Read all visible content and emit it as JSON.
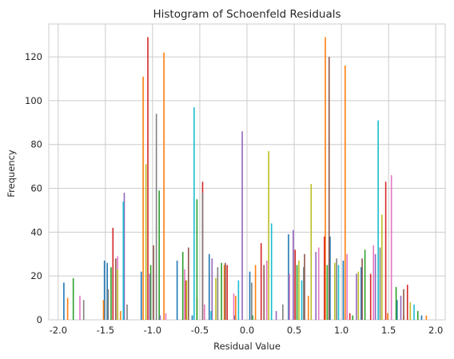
{
  "chart_data": {
    "type": "bar",
    "title": "Histogram of Schoenfeld Residuals",
    "xlabel": "Residual Value",
    "ylabel": "Frequency",
    "xlim": [
      -2.1,
      2.1
    ],
    "ylim": [
      0,
      135
    ],
    "xticks": [
      "-2.0",
      "-1.5",
      "-1.0",
      "-0.5",
      "0.0",
      "0.5",
      "1.0",
      "1.5",
      "2.0"
    ],
    "yticks": [
      "0",
      "20",
      "40",
      "60",
      "80",
      "100",
      "120"
    ],
    "grid": true,
    "colors": [
      "#1f77b4",
      "#ff7f0e",
      "#2ca02c",
      "#d62728",
      "#9467bd",
      "#8c564b",
      "#e377c2",
      "#7f7f7f",
      "#bcbd22",
      "#17becf"
    ],
    "series": [
      {
        "values": [
          [
            -1.94,
            17
          ],
          [
            -1.51,
            27
          ],
          [
            -1.48,
            26
          ],
          [
            -1.12,
            22
          ],
          [
            -0.74,
            27
          ],
          [
            -0.58,
            2
          ],
          [
            -0.4,
            30
          ],
          [
            -0.13,
            2
          ],
          [
            0.03,
            22
          ],
          [
            0.44,
            39
          ],
          [
            0.88,
            38
          ],
          [
            1.02,
            27
          ],
          [
            1.21,
            24
          ],
          [
            1.59,
            9
          ],
          [
            1.85,
            2
          ]
        ]
      },
      {
        "values": [
          [
            -1.9,
            10
          ],
          [
            -1.52,
            9
          ],
          [
            -1.34,
            4
          ],
          [
            -1.1,
            111
          ],
          [
            -0.88,
            122
          ],
          [
            -0.53,
            10
          ],
          [
            -0.24,
            25
          ],
          [
            -0.12,
            11
          ],
          [
            0.09,
            25
          ],
          [
            0.65,
            11
          ],
          [
            0.83,
            129
          ],
          [
            1.04,
            116
          ],
          [
            1.49,
            3
          ],
          [
            1.66,
            2
          ],
          [
            1.9,
            2
          ]
        ]
      },
      {
        "values": [
          [
            -1.84,
            19
          ],
          [
            -1.44,
            24
          ],
          [
            -1.02,
            25
          ],
          [
            -0.93,
            59
          ],
          [
            -0.68,
            31
          ],
          [
            -0.53,
            55
          ],
          [
            -0.27,
            26
          ],
          [
            0.06,
            2
          ],
          [
            0.26,
            3
          ],
          [
            0.53,
            25
          ],
          [
            0.85,
            25
          ],
          [
            1.12,
            2
          ],
          [
            1.25,
            32
          ],
          [
            1.58,
            15
          ],
          [
            1.81,
            4
          ]
        ]
      },
      {
        "values": [
          [
            -1.42,
            42
          ],
          [
            -1.05,
            129
          ],
          [
            -0.65,
            18
          ],
          [
            -0.47,
            63
          ],
          [
            -0.21,
            25
          ],
          [
            0.15,
            35
          ],
          [
            0.51,
            32
          ],
          [
            0.82,
            38
          ],
          [
            1.09,
            3
          ],
          [
            1.31,
            21
          ],
          [
            1.47,
            63
          ],
          [
            1.7,
            16
          ]
        ]
      },
      {
        "values": [
          [
            -1.3,
            58
          ],
          [
            -1.03,
            21
          ],
          [
            -0.92,
            2
          ],
          [
            -0.37,
            28
          ],
          [
            -0.05,
            86
          ],
          [
            0.31,
            4
          ],
          [
            0.49,
            41
          ],
          [
            0.73,
            31
          ],
          [
            1.16,
            21
          ],
          [
            1.36,
            30
          ],
          [
            1.63,
            11
          ]
        ]
      },
      {
        "values": [
          [
            -1.39,
            28
          ],
          [
            -0.99,
            34
          ],
          [
            -0.62,
            33
          ],
          [
            -0.23,
            26
          ],
          [
            0.18,
            25
          ],
          [
            0.61,
            30
          ],
          [
            0.87,
            120
          ],
          [
            1.22,
            28
          ],
          [
            1.66,
            14
          ]
        ]
      },
      {
        "values": [
          [
            -1.77,
            11
          ],
          [
            -1.37,
            29
          ],
          [
            -0.86,
            3
          ],
          [
            -0.66,
            23
          ],
          [
            -0.45,
            7
          ],
          [
            -0.14,
            12
          ],
          [
            0.21,
            27
          ],
          [
            0.45,
            21
          ],
          [
            0.76,
            33
          ],
          [
            1.06,
            30
          ],
          [
            1.34,
            34
          ],
          [
            1.53,
            66
          ]
        ]
      },
      {
        "values": [
          [
            -1.73,
            9
          ],
          [
            -1.47,
            14
          ],
          [
            -1.27,
            7
          ],
          [
            -0.96,
            94
          ],
          [
            -0.47,
            58
          ],
          [
            -0.31,
            24
          ],
          [
            0.05,
            17
          ],
          [
            0.38,
            7
          ],
          [
            0.6,
            24
          ],
          [
            0.95,
            28
          ],
          [
            1.41,
            33
          ]
        ]
      },
      {
        "values": [
          [
            -1.37,
            23
          ],
          [
            -1.07,
            71
          ],
          [
            -0.64,
            18
          ],
          [
            -0.33,
            19
          ],
          [
            0.23,
            77
          ],
          [
            0.55,
            27
          ],
          [
            0.68,
            62
          ],
          [
            0.93,
            26
          ],
          [
            1.18,
            22
          ],
          [
            1.43,
            48
          ],
          [
            1.73,
            8
          ]
        ]
      },
      {
        "values": [
          [
            -1.31,
            54
          ],
          [
            -0.56,
            97
          ],
          [
            -0.38,
            4
          ],
          [
            -0.09,
            18
          ],
          [
            0.26,
            44
          ],
          [
            0.58,
            18
          ],
          [
            0.97,
            25
          ],
          [
            1.39,
            91
          ],
          [
            1.77,
            7
          ]
        ]
      }
    ]
  }
}
